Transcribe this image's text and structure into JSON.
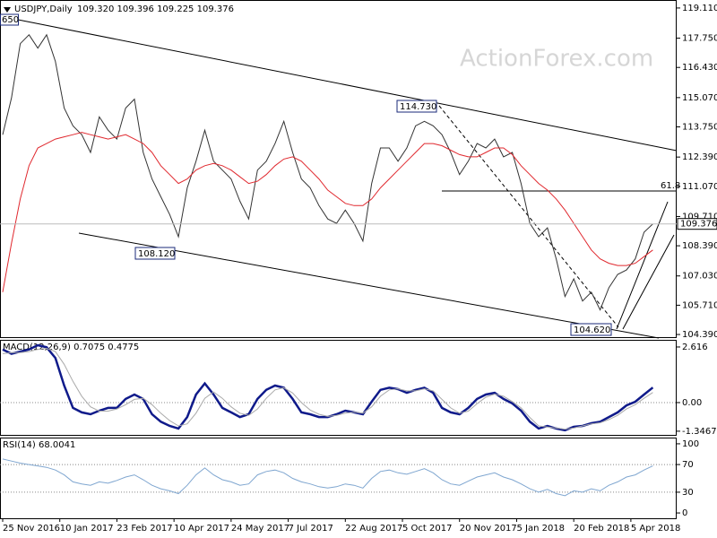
{
  "header": {
    "symbol": "USDJPY,Daily",
    "ohlc": "109.320 109.396 109.225 109.376"
  },
  "watermark": "ActionForex.com",
  "annotations": {
    "top_left": "650",
    "high": "114.730",
    "low_left": "108.120",
    "low_right": "104.620",
    "fib": "61.8"
  },
  "chart_data": [
    {
      "type": "line",
      "xlim": [
        0,
        76
      ],
      "ylim": [
        104.23,
        119.43
      ],
      "yticks": [
        {
          "value": 119.11,
          "label": "119.110"
        },
        {
          "value": 117.75,
          "label": "117.750"
        },
        {
          "value": 116.43,
          "label": "116.430"
        },
        {
          "value": 115.07,
          "label": "115.070"
        },
        {
          "value": 113.75,
          "label": "113.750"
        },
        {
          "value": 112.39,
          "label": "112.390"
        },
        {
          "value": 111.07,
          "label": "111.070"
        },
        {
          "value": 109.71,
          "label": "109.710"
        },
        {
          "value": 108.39,
          "label": "108.390"
        },
        {
          "value": 107.03,
          "label": "107.030"
        },
        {
          "value": 105.71,
          "label": "105.710"
        },
        {
          "value": 104.39,
          "label": "104.390"
        }
      ],
      "series": [
        {
          "name": "USDJPY",
          "color": "#333333",
          "values": [
            113.4,
            115.05,
            117.5,
            117.9,
            117.3,
            117.9,
            116.7,
            114.6,
            113.8,
            113.4,
            112.6,
            114.2,
            113.6,
            113.2,
            114.6,
            115.0,
            112.6,
            111.4,
            110.6,
            109.8,
            108.8,
            111.0,
            112.2,
            113.6,
            112.2,
            111.8,
            111.4,
            110.4,
            109.6,
            111.8,
            112.2,
            113.0,
            114.0,
            112.6,
            111.4,
            111.0,
            110.2,
            109.6,
            109.4,
            110.0,
            109.4,
            108.6,
            111.2,
            112.8,
            112.8,
            112.2,
            112.8,
            113.8,
            114.0,
            113.8,
            113.4,
            112.6,
            111.6,
            112.2,
            113.0,
            112.8,
            113.2,
            112.4,
            112.6,
            111.2,
            109.4,
            108.8,
            109.2,
            107.8,
            106.1,
            106.9,
            105.9,
            106.3,
            105.5,
            106.5,
            107.1,
            107.3,
            107.8,
            109.0,
            109.376
          ]
        },
        {
          "name": "MA",
          "color": "#e0282e",
          "values": [
            106.3,
            108.5,
            110.5,
            112.0,
            112.8,
            113.0,
            113.2,
            113.3,
            113.4,
            113.5,
            113.4,
            113.3,
            113.2,
            113.3,
            113.4,
            113.2,
            113.0,
            112.6,
            112.0,
            111.6,
            111.2,
            111.4,
            111.8,
            112.0,
            112.1,
            112.0,
            111.8,
            111.5,
            111.2,
            111.3,
            111.6,
            112.0,
            112.3,
            112.4,
            112.2,
            111.8,
            111.4,
            110.9,
            110.6,
            110.3,
            110.2,
            110.2,
            110.5,
            111.0,
            111.4,
            111.8,
            112.2,
            112.6,
            113.0,
            113.0,
            112.9,
            112.7,
            112.5,
            112.4,
            112.4,
            112.6,
            112.8,
            112.8,
            112.5,
            112.0,
            111.6,
            111.2,
            110.9,
            110.5,
            110.0,
            109.4,
            108.8,
            108.2,
            107.8,
            107.6,
            107.5,
            107.5,
            107.6,
            107.9,
            108.2
          ]
        }
      ]
    },
    {
      "type": "line",
      "title": "MACD(12,26,9) 0.7075 0.4775",
      "xlim": [
        0,
        76
      ],
      "ylim": [
        -1.52,
        2.91
      ],
      "yticks": [
        2.616,
        {
          "value": 0,
          "label": "0.00"
        },
        -1.3467
      ],
      "level_lines": [
        0
      ],
      "series": [
        {
          "name": "MACD",
          "color": "#0f1a8a",
          "values": [
            2.5,
            2.3,
            2.4,
            2.5,
            2.7,
            2.6,
            2.1,
            0.8,
            -0.25,
            -0.46,
            -0.55,
            -0.38,
            -0.25,
            -0.25,
            0.17,
            0.38,
            0.17,
            -0.55,
            -0.9,
            -1.1,
            -1.22,
            -0.68,
            0.38,
            0.9,
            0.38,
            -0.25,
            -0.46,
            -0.68,
            -0.55,
            0.17,
            0.6,
            0.8,
            0.7,
            0.17,
            -0.46,
            -0.55,
            -0.68,
            -0.68,
            -0.55,
            -0.38,
            -0.46,
            -0.55,
            0.04,
            0.6,
            0.7,
            0.63,
            0.46,
            0.6,
            0.7,
            0.46,
            -0.25,
            -0.46,
            -0.55,
            -0.25,
            0.17,
            0.38,
            0.46,
            0.17,
            -0.04,
            -0.38,
            -0.9,
            -1.22,
            -1.1,
            -1.22,
            -1.3,
            -1.14,
            -1.1,
            -0.97,
            -0.9,
            -0.68,
            -0.46,
            -0.13,
            0.04,
            0.38,
            0.7075
          ]
        },
        {
          "name": "Signal",
          "color": "#aaaaaa",
          "values": [
            2.3,
            2.35,
            2.35,
            2.4,
            2.5,
            2.55,
            2.4,
            1.8,
            1.0,
            0.3,
            -0.2,
            -0.4,
            -0.4,
            -0.3,
            -0.1,
            0.15,
            0.2,
            -0.1,
            -0.5,
            -0.85,
            -1.1,
            -1.0,
            -0.5,
            0.2,
            0.5,
            0.2,
            -0.2,
            -0.5,
            -0.6,
            -0.3,
            0.2,
            0.6,
            0.7,
            0.45,
            0.0,
            -0.35,
            -0.55,
            -0.65,
            -0.6,
            -0.5,
            -0.45,
            -0.5,
            -0.2,
            0.3,
            0.6,
            0.65,
            0.55,
            0.55,
            0.65,
            0.55,
            0.15,
            -0.25,
            -0.5,
            -0.4,
            -0.05,
            0.25,
            0.4,
            0.3,
            0.05,
            -0.25,
            -0.7,
            -1.1,
            -1.15,
            -1.2,
            -1.25,
            -1.2,
            -1.1,
            -1.0,
            -0.95,
            -0.8,
            -0.6,
            -0.3,
            -0.1,
            0.2,
            0.4775
          ]
        }
      ]
    },
    {
      "type": "line",
      "title": "RSI(14) 68.0041",
      "xlim": [
        0,
        76
      ],
      "ylim": [
        -7.7,
        107.7
      ],
      "yticks": [
        100,
        70,
        30,
        0
      ],
      "level_lines": [
        70,
        30
      ],
      "xticks": [
        {
          "value": 0,
          "label": "25 Nov 2016"
        },
        {
          "value": 6.5,
          "label": "10 Jan 2017"
        },
        {
          "value": 13,
          "label": "23 Feb 2017"
        },
        {
          "value": 19.5,
          "label": "10 Apr 2017"
        },
        {
          "value": 26,
          "label": "24 May 2017"
        },
        {
          "value": 32.5,
          "label": "7 Jul 2017"
        },
        {
          "value": 39,
          "label": "22 Aug 2017"
        },
        {
          "value": 45.5,
          "label": "5 Oct 2017"
        },
        {
          "value": 52,
          "label": "20 Nov 2017"
        },
        {
          "value": 58.5,
          "label": "5 Jan 2018"
        },
        {
          "value": 65,
          "label": "20 Feb 2018"
        },
        {
          "value": 71.5,
          "label": "5 Apr 2018"
        }
      ],
      "series": [
        {
          "name": "RSI",
          "color": "#7fa6d0",
          "values": [
            78,
            75,
            72,
            70,
            68,
            66,
            62,
            55,
            45,
            42,
            40,
            45,
            43,
            47,
            52,
            55,
            48,
            40,
            35,
            32,
            28,
            40,
            55,
            65,
            55,
            48,
            45,
            40,
            42,
            55,
            60,
            62,
            58,
            50,
            45,
            42,
            38,
            36,
            38,
            42,
            40,
            36,
            50,
            60,
            62,
            58,
            56,
            60,
            64,
            58,
            48,
            42,
            40,
            46,
            52,
            55,
            58,
            52,
            48,
            42,
            35,
            30,
            34,
            28,
            25,
            32,
            30,
            35,
            32,
            40,
            45,
            52,
            55,
            62,
            68.0041
          ]
        }
      ]
    }
  ]
}
